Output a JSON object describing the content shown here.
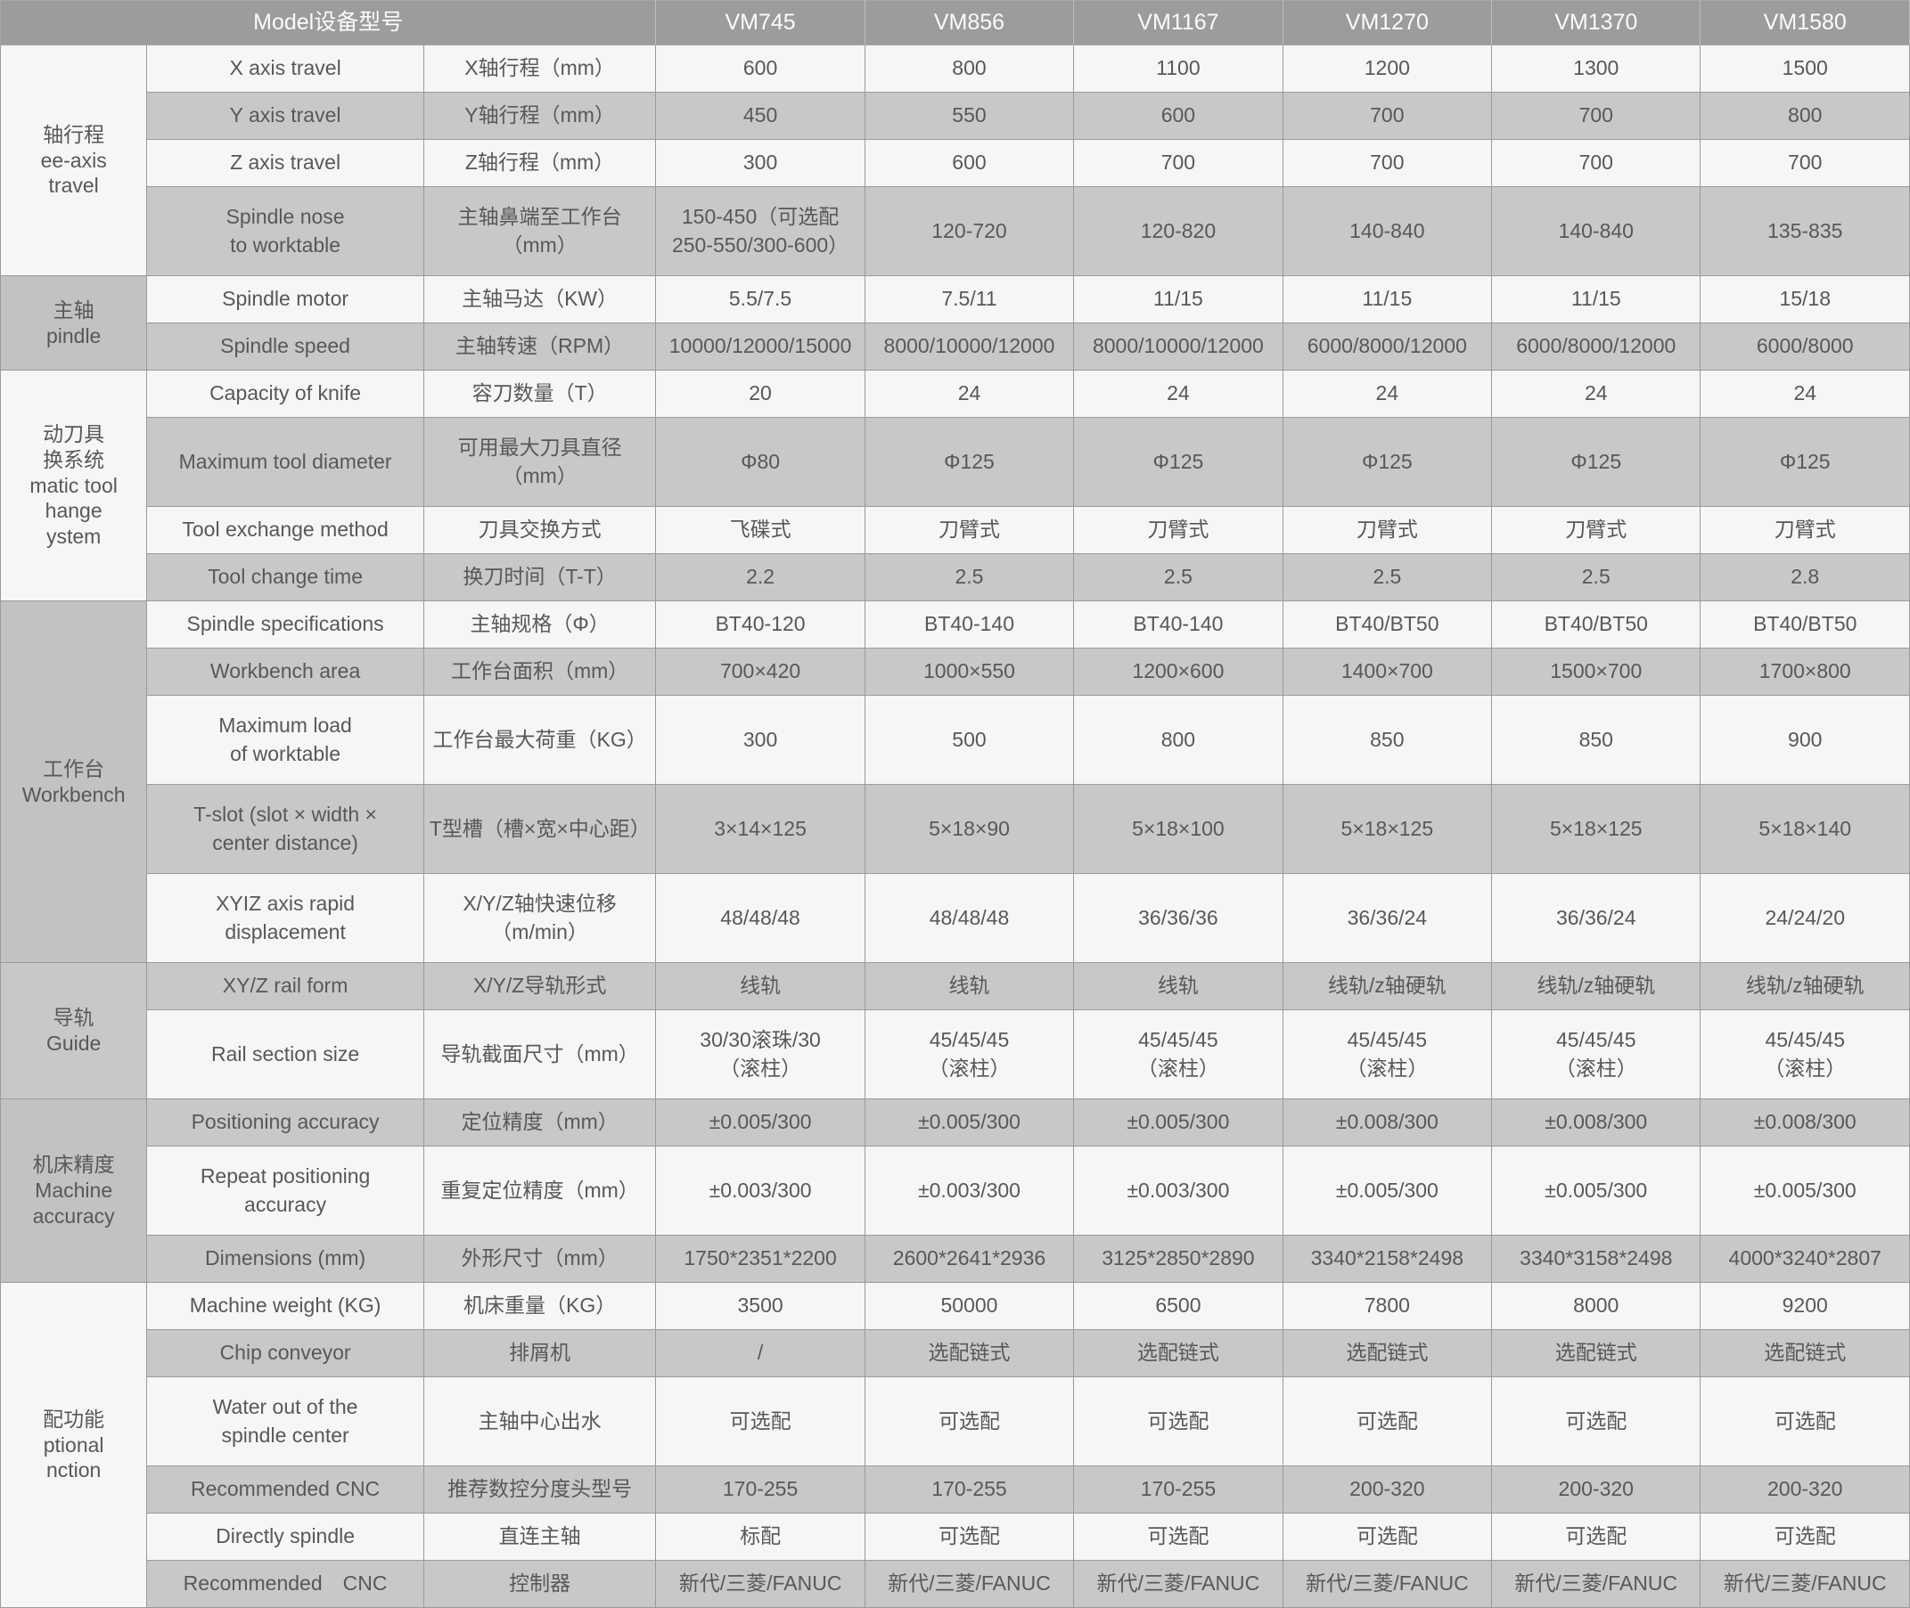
{
  "header": {
    "model_label": "Model设备型号",
    "models": [
      "VM745",
      "VM856",
      "VM1167",
      "VM1270",
      "VM1370",
      "VM1580"
    ]
  },
  "sections": [
    {
      "zh": "轴行程",
      "en": "ee-axis\ntravel",
      "start": 0,
      "span": 4
    },
    {
      "zh": "主轴",
      "en": "pindle",
      "start": 4,
      "span": 2
    },
    {
      "zh": "动刀具\n换系统",
      "en": "matic tool\nhange\nystem",
      "start": 6,
      "span": 4
    },
    {
      "zh": "工作台",
      "en": "Workbench",
      "start": 10,
      "span": 5
    },
    {
      "zh": "导轨",
      "en": "Guide",
      "start": 15,
      "span": 2
    },
    {
      "zh": "机床精度",
      "en": "Machine\naccuracy",
      "start": 17,
      "span": 3
    },
    {
      "zh": "配功能",
      "en": "ptional\nnction",
      "start": 20,
      "span": 6
    }
  ],
  "rows": [
    {
      "en": "X axis travel",
      "zh": "X轴行程（mm）",
      "values": [
        "600",
        "800",
        "1100",
        "1200",
        "1300",
        "1500"
      ]
    },
    {
      "en": "Y axis travel",
      "zh": "Y轴行程（mm）",
      "values": [
        "450",
        "550",
        "600",
        "700",
        "700",
        "800"
      ]
    },
    {
      "en": "Z axis travel",
      "zh": "Z轴行程（mm）",
      "values": [
        "300",
        "600",
        "700",
        "700",
        "700",
        "700"
      ]
    },
    {
      "en": "Spindle nose\nto worktable",
      "zh": "主轴鼻端至工作台\n（mm）",
      "values": [
        "150-450（可选配\n250-550/300-600）",
        "120-720",
        "120-820",
        "140-840",
        "140-840",
        "135-835"
      ]
    },
    {
      "en": "Spindle motor",
      "zh": "主轴马达（KW）",
      "values": [
        "5.5/7.5",
        "7.5/11",
        "11/15",
        "11/15",
        "11/15",
        "15/18"
      ]
    },
    {
      "en": "Spindle speed",
      "zh": "主轴转速（RPM）",
      "values": [
        "10000/12000/15000",
        "8000/10000/12000",
        "8000/10000/12000",
        "6000/8000/12000",
        "6000/8000/12000",
        "6000/8000"
      ]
    },
    {
      "en": "Capacity of knife",
      "zh": "容刀数量（T）",
      "values": [
        "20",
        "24",
        "24",
        "24",
        "24",
        "24"
      ]
    },
    {
      "en": "Maximum tool diameter",
      "zh": "可用最大刀具直径\n（mm）",
      "values": [
        "Φ80",
        "Φ125",
        "Φ125",
        "Φ125",
        "Φ125",
        "Φ125"
      ]
    },
    {
      "en": "Tool exchange method",
      "zh": "刀具交换方式",
      "values": [
        "飞碟式",
        "刀臂式",
        "刀臂式",
        "刀臂式",
        "刀臂式",
        "刀臂式"
      ]
    },
    {
      "en": "Tool change time",
      "zh": "换刀时间（T-T）",
      "values": [
        "2.2",
        "2.5",
        "2.5",
        "2.5",
        "2.5",
        "2.8"
      ]
    },
    {
      "en": "Spindle specifications",
      "zh": "主轴规格（Φ）",
      "values": [
        "BT40-120",
        "BT40-140",
        "BT40-140",
        "BT40/BT50",
        "BT40/BT50",
        "BT40/BT50"
      ]
    },
    {
      "en": "Workbench area",
      "zh": "工作台面积（mm）",
      "values": [
        "700×420",
        "1000×550",
        "1200×600",
        "1400×700",
        "1500×700",
        "1700×800"
      ]
    },
    {
      "en": "Maximum load\nof worktable",
      "zh": "工作台最大荷重（KG）",
      "values": [
        "300",
        "500",
        "800",
        "850",
        "850",
        "900"
      ]
    },
    {
      "en": "T-slot (slot × width ×\ncenter distance)",
      "zh": "T型槽（槽×宽×中心距）",
      "values": [
        "3×14×125",
        "5×18×90",
        "5×18×100",
        "5×18×125",
        "5×18×125",
        "5×18×140"
      ]
    },
    {
      "en": "XYIZ axis rapid\ndisplacement",
      "zh": "X/Y/Z轴快速位移\n（m/min）",
      "values": [
        "48/48/48",
        "48/48/48",
        "36/36/36",
        "36/36/24",
        "36/36/24",
        "24/24/20"
      ]
    },
    {
      "en": "XY/Z rail form",
      "zh": "X/Y/Z导轨形式",
      "values": [
        "线轨",
        "线轨",
        "线轨",
        "线轨/z轴硬轨",
        "线轨/z轴硬轨",
        "线轨/z轴硬轨"
      ]
    },
    {
      "en": "Rail section size",
      "zh": "导轨截面尺寸（mm）",
      "values": [
        "30/30滚珠/30\n（滚柱）",
        "45/45/45\n（滚柱）",
        "45/45/45\n（滚柱）",
        "45/45/45\n（滚柱）",
        "45/45/45\n（滚柱）",
        "45/45/45\n（滚柱）"
      ]
    },
    {
      "en": "Positioning accuracy",
      "zh": "定位精度（mm）",
      "values": [
        "±0.005/300",
        "±0.005/300",
        "±0.005/300",
        "±0.008/300",
        "±0.008/300",
        "±0.008/300"
      ]
    },
    {
      "en": "Repeat positioning\naccuracy",
      "zh": "重复定位精度（mm）",
      "values": [
        "±0.003/300",
        "±0.003/300",
        "±0.003/300",
        "±0.005/300",
        "±0.005/300",
        "±0.005/300"
      ]
    },
    {
      "en": "Dimensions (mm)",
      "zh": "外形尺寸（mm）",
      "values": [
        "1750*2351*2200",
        "2600*2641*2936",
        "3125*2850*2890",
        "3340*2158*2498",
        "3340*3158*2498",
        "4000*3240*2807"
      ]
    },
    {
      "en": "Machine weight (KG)",
      "zh": "机床重量（KG）",
      "values": [
        "3500",
        "50000",
        "6500",
        "7800",
        "8000",
        "9200"
      ]
    },
    {
      "en": "Chip conveyor",
      "zh": "排屑机",
      "values": [
        "/",
        "选配链式",
        "选配链式",
        "选配链式",
        "选配链式",
        "选配链式"
      ]
    },
    {
      "en": "Water out of the\nspindle center",
      "zh": "主轴中心出水",
      "values": [
        "可选配",
        "可选配",
        "可选配",
        "可选配",
        "可选配",
        "可选配"
      ]
    },
    {
      "en": "Recommended CNC",
      "zh": "推荐数控分度头型号",
      "values": [
        "170-255",
        "170-255",
        "170-255",
        "200-320",
        "200-320",
        "200-320"
      ]
    },
    {
      "en": "Directly spindle",
      "zh": "直连主轴",
      "values": [
        "标配",
        "可选配",
        "可选配",
        "可选配",
        "可选配",
        "可选配"
      ]
    },
    {
      "en": "Recommended　CNC",
      "zh": "控制器",
      "values": [
        "新代/三菱/FANUC",
        "新代/三菱/FANUC",
        "新代/三菱/FANUC",
        "新代/三菱/FANUC",
        "新代/三菱/FANUC",
        "新代/三菱/FANUC"
      ]
    }
  ],
  "colors": {
    "header_bg": "#9c9c9c",
    "row_light": "#f6f6f5",
    "row_gray": "#c8c8c8",
    "grid_line": "#9a9a9a",
    "text": "#57585a"
  }
}
